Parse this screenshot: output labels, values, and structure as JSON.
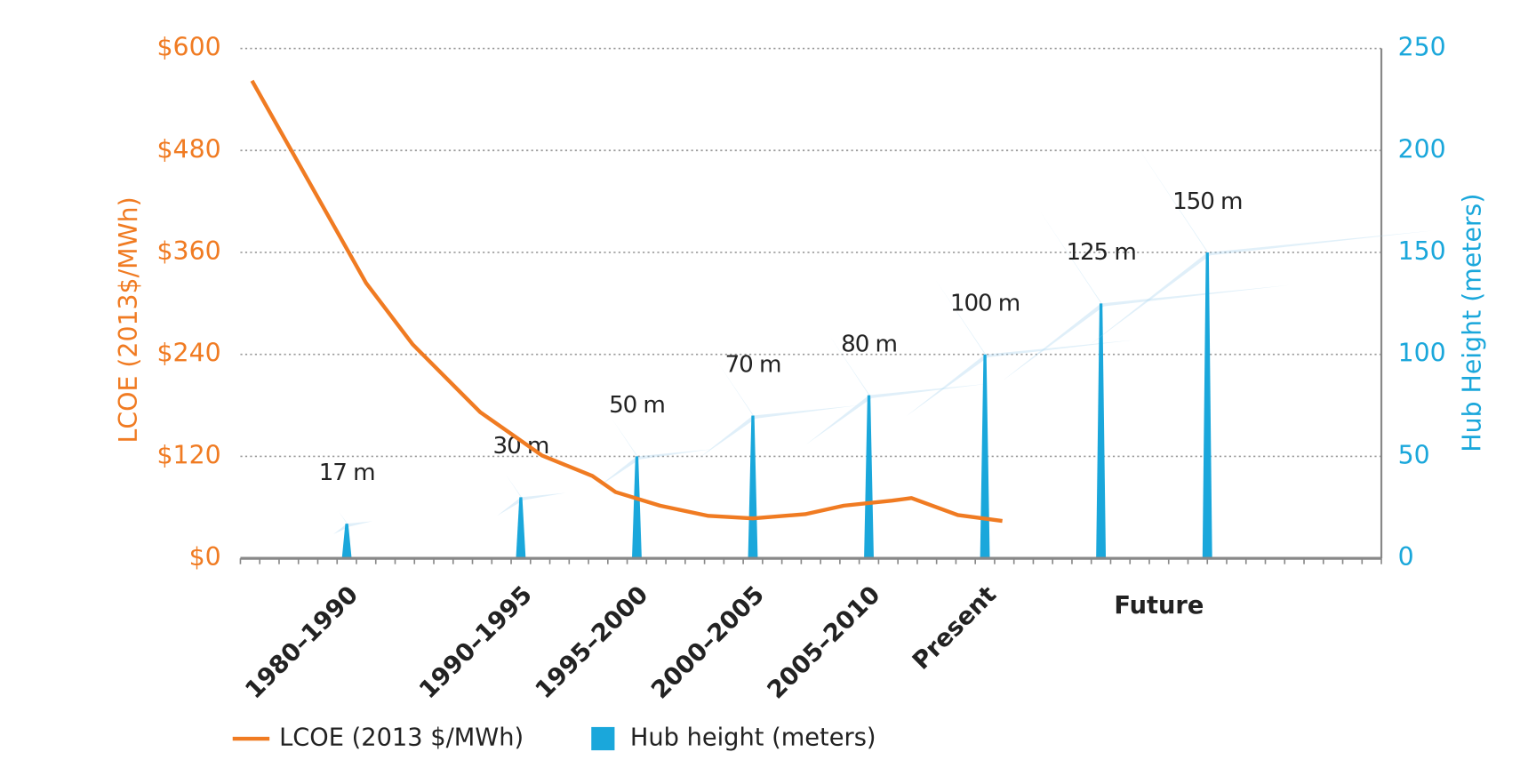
{
  "chart_data": {
    "type": "line-bar",
    "ylabel": "LCOE (2013$/MWh)",
    "y2label": "Hub Height (meters)",
    "xlim": [
      0,
      59
    ],
    "xminorticks": [
      0,
      1,
      2,
      3,
      4,
      5,
      6,
      7,
      8,
      9,
      10,
      11,
      12,
      13,
      14,
      15,
      16,
      17,
      18,
      19,
      20,
      21,
      22,
      23,
      24,
      25,
      26,
      27,
      28,
      29,
      30,
      31,
      32,
      33,
      34,
      35,
      36,
      37,
      38,
      39,
      40,
      41,
      42,
      43,
      44,
      45,
      46,
      47,
      48,
      49,
      50,
      51,
      52,
      53,
      54,
      55,
      56,
      57,
      58,
      59
    ],
    "xticks": [
      {
        "value": 5.5,
        "label": "1980–1990"
      },
      {
        "value": 14.5,
        "label": "1990–1995"
      },
      {
        "value": 20.5,
        "label": "1995–2000"
      },
      {
        "value": 26.5,
        "label": "2000–2005"
      },
      {
        "value": 32.5,
        "label": "2005–2010"
      },
      {
        "value": 38.5,
        "label": "Present"
      },
      {
        "value": 47.5,
        "label": "Future"
      }
    ],
    "ylim": [
      0,
      600
    ],
    "yticks": [
      {
        "value": 0,
        "label": "$0"
      },
      {
        "value": 120,
        "label": "$120"
      },
      {
        "value": 240,
        "label": "$240"
      },
      {
        "value": 360,
        "label": "$360"
      },
      {
        "value": 480,
        "label": "$480"
      },
      {
        "value": 600,
        "label": "$600"
      }
    ],
    "y2lim": [
      0,
      250
    ],
    "y2ticks": [
      0,
      50,
      100,
      150,
      200,
      250
    ],
    "grid": true,
    "series": [
      {
        "name": "LCOE (2013 $/MWh)",
        "kind": "line",
        "color": "#f07b22",
        "x": [
          0.6,
          6.5,
          8.9,
          12.4,
          15.6,
          18.2,
          19.4,
          21.7,
          24.2,
          26.5,
          29.2,
          31.2,
          33.7,
          34.7,
          37.1,
          39.4
        ],
        "values": [
          562,
          324,
          252,
          172,
          121,
          97,
          78,
          62,
          50,
          47,
          52,
          62,
          68,
          71,
          51,
          44
        ]
      },
      {
        "name": "Hub height (meters)",
        "kind": "tower",
        "axis": "y2",
        "color": "#1aa7db",
        "x": [
          5.5,
          14.5,
          20.5,
          26.5,
          32.5,
          38.5,
          44.5,
          50
        ],
        "values": [
          17,
          30,
          50,
          70,
          80,
          100,
          125,
          150
        ],
        "value_labels": [
          "17 m",
          "30 m",
          "50 m",
          "70 m",
          "80 m",
          "100 m",
          "125 m",
          "150 m"
        ]
      }
    ]
  }
}
